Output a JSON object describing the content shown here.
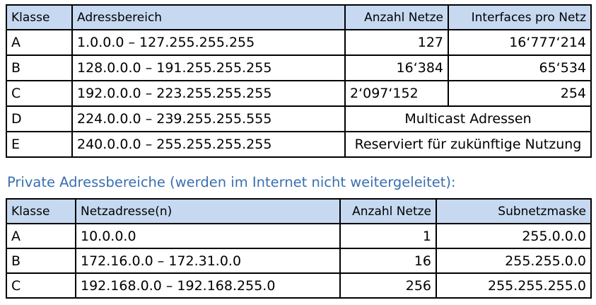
{
  "table1": {
    "headers": [
      "Klasse",
      "Adressbereich",
      "Anzahl Netze",
      "Interfaces pro Netz"
    ],
    "rows": [
      [
        "A",
        "1.0.0.0 – 127.255.255.255",
        "127",
        "16‘777‘214"
      ],
      [
        "B",
        "128.0.0.0 – 191.255.255.255",
        "16‘384",
        "65‘534"
      ],
      [
        "C",
        "192.0.0.0 – 223.255.255.255",
        "2‘097‘152",
        "254"
      ],
      [
        "D",
        "224.0.0.0 – 239.255.255.555",
        "Multicast Adressen"
      ],
      [
        "E",
        "240.0.0.0 – 255.255.255.255",
        "Reserviert für zukünftige Nutzung"
      ]
    ]
  },
  "heading2": "Private Adressbereiche (werden im Internet nicht weitergeleitet):",
  "table2": {
    "headers": [
      "Klasse",
      "Netzadresse(n)",
      "Anzahl Netze",
      "Subnetzmaske"
    ],
    "rows": [
      [
        "A",
        "10.0.0.0",
        "1",
        "255.0.0.0"
      ],
      [
        "B",
        "172.16.0.0 – 172.31.0.0",
        "16",
        "255.255.0.0"
      ],
      [
        "C",
        "192.168.0.0 – 192.168.255.0",
        "256",
        "255.255.255.0"
      ]
    ]
  },
  "colors": {
    "header_bg": "#c6d9f1",
    "heading_text": "#3a6fb0",
    "border": "#000000"
  }
}
